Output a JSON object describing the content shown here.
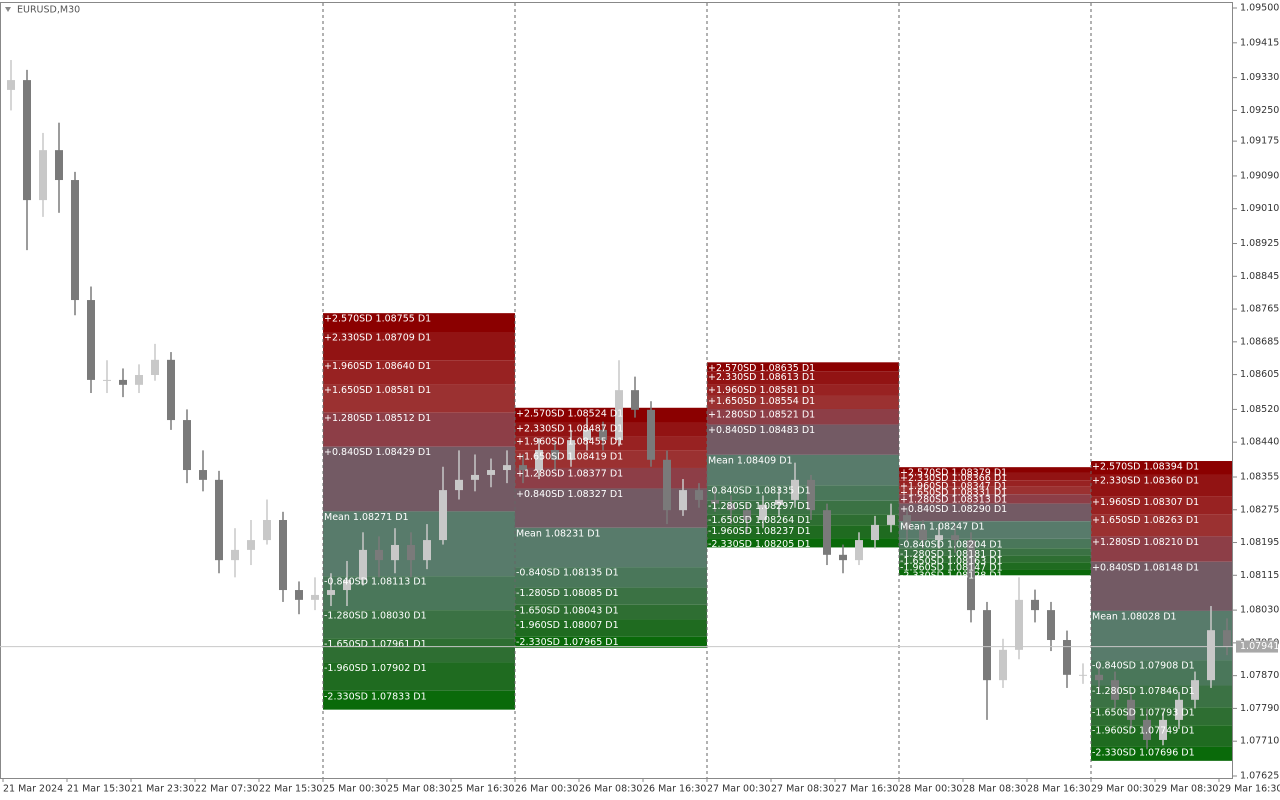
{
  "chart_data": {
    "type": "candlestick",
    "title": "EURUSD,M30",
    "ylim": [
      1.07625,
      1.095
    ],
    "yticks": [
      {
        "value": 1.095,
        "label": "1.09500"
      },
      1.09415,
      {
        "value": 1.0933,
        "label": "1.09330"
      },
      {
        "value": 1.0925,
        "label": "1.09250"
      },
      1.09175,
      {
        "value": 1.0909,
        "label": "1.09090"
      },
      {
        "value": 1.0901,
        "label": "1.09010"
      },
      1.08925,
      1.08845,
      1.08765,
      1.08685,
      1.08605,
      {
        "value": 1.0852,
        "label": "1.08520"
      },
      {
        "value": 1.0844,
        "label": "1.08440"
      },
      1.08355,
      1.08275,
      1.08195,
      1.08115,
      {
        "value": 1.0803,
        "label": "1.08030"
      },
      {
        "value": 1.0795,
        "label": "1.07950"
      },
      {
        "value": 1.0787,
        "label": "1.07870"
      },
      {
        "value": 1.0779,
        "label": "1.07790"
      },
      {
        "value": 1.0771,
        "label": "1.07710"
      },
      1.07625
    ],
    "x_labels": [
      "21 Mar 2024",
      "21 Mar 15:30",
      "21 Mar 23:30",
      "22 Mar 07:30",
      "22 Mar 15:30",
      "25 Mar 00:30",
      "25 Mar 08:30",
      "25 Mar 16:30",
      "26 Mar 00:30",
      "26 Mar 08:30",
      "26 Mar 16:30",
      "27 Mar 00:30",
      "27 Mar 08:30",
      "27 Mar 16:30",
      "28 Mar 00:30",
      "28 Mar 08:30",
      "28 Mar 16:30",
      "29 Mar 00:30",
      "29 Mar 08:30",
      "29 Mar 16:30"
    ],
    "up_color": "#c8c8c8",
    "down_color": "#7a7a7a",
    "ohlc": [
      [
        1.093,
        1.09373,
        1.0925,
        1.09324
      ],
      [
        1.09324,
        1.09349,
        1.08909,
        1.09031
      ],
      [
        1.09031,
        1.09195,
        1.0899,
        1.09153
      ],
      [
        1.09153,
        1.0922,
        1.09,
        1.0908
      ],
      [
        1.0908,
        1.091,
        1.0875,
        1.08787
      ],
      [
        1.08787,
        1.0882,
        1.0856,
        1.08592
      ],
      [
        1.08592,
        1.0864,
        1.0856,
        1.08592
      ],
      [
        1.08592,
        1.0862,
        1.0855,
        1.0858
      ],
      [
        1.0858,
        1.0863,
        1.0856,
        1.08604
      ],
      [
        1.08604,
        1.0868,
        1.0859,
        1.08641
      ],
      [
        1.08641,
        1.0866,
        1.0847,
        1.08494
      ],
      [
        1.08494,
        1.0852,
        1.0834,
        1.08372
      ],
      [
        1.08372,
        1.0842,
        1.0832,
        1.08348
      ],
      [
        1.08348,
        1.0837,
        1.0812,
        1.08152
      ],
      [
        1.08152,
        1.0823,
        1.0811,
        1.08177
      ],
      [
        1.08177,
        1.0825,
        1.0814,
        1.08201
      ],
      [
        1.08201,
        1.083,
        1.0819,
        1.0825
      ],
      [
        1.0825,
        1.0827,
        1.0805,
        1.08079
      ],
      [
        1.08079,
        1.081,
        1.0802,
        1.08055
      ],
      [
        1.08055,
        1.0811,
        1.0803,
        1.08067
      ],
      [
        1.08067,
        1.0812,
        1.0804,
        1.08079
      ],
      [
        1.08079,
        1.0815,
        1.0804,
        1.08104
      ],
      [
        1.08104,
        1.0822,
        1.0809,
        1.08177
      ],
      [
        1.08177,
        1.0821,
        1.0811,
        1.08152
      ],
      [
        1.08152,
        1.0823,
        1.0812,
        1.08189
      ],
      [
        1.08189,
        1.0822,
        1.0811,
        1.08152
      ],
      [
        1.08152,
        1.0824,
        1.0813,
        1.08201
      ],
      [
        1.08201,
        1.0838,
        1.0819,
        1.08323
      ],
      [
        1.08323,
        1.0842,
        1.083,
        1.08348
      ],
      [
        1.08348,
        1.0841,
        1.0832,
        1.0836
      ],
      [
        1.0836,
        1.084,
        1.0833,
        1.08372
      ],
      [
        1.08372,
        1.0842,
        1.0834,
        1.08384
      ],
      [
        1.08384,
        1.0841,
        1.0834,
        1.08372
      ],
      [
        1.08372,
        1.0845,
        1.0835,
        1.08421
      ],
      [
        1.08421,
        1.0844,
        1.0837,
        1.08397
      ],
      [
        1.08397,
        1.0847,
        1.0838,
        1.08445
      ],
      [
        1.08445,
        1.085,
        1.0842,
        1.0847
      ],
      [
        1.0847,
        1.0849,
        1.0842,
        1.08445
      ],
      [
        1.08445,
        1.0864,
        1.0843,
        1.08567
      ],
      [
        1.08567,
        1.086,
        1.085,
        1.08519
      ],
      [
        1.08519,
        1.0854,
        1.0838,
        1.08397
      ],
      [
        1.08397,
        1.0842,
        1.0824,
        1.08274
      ],
      [
        1.08274,
        1.0835,
        1.0826,
        1.08323
      ],
      [
        1.08323,
        1.0834,
        1.0828,
        1.08299
      ],
      [
        1.08299,
        1.0833,
        1.0827,
        1.0829
      ],
      [
        1.0829,
        1.0831,
        1.0824,
        1.08274
      ],
      [
        1.08274,
        1.0829,
        1.0822,
        1.0825
      ],
      [
        1.0825,
        1.0831,
        1.0823,
        1.08287
      ],
      [
        1.08287,
        1.0833,
        1.0826,
        1.08299
      ],
      [
        1.08299,
        1.0839,
        1.0828,
        1.08348
      ],
      [
        1.08348,
        1.0836,
        1.0825,
        1.08274
      ],
      [
        1.08274,
        1.0829,
        1.0814,
        1.08165
      ],
      [
        1.08165,
        1.0819,
        1.0812,
        1.08152
      ],
      [
        1.08152,
        1.0822,
        1.0814,
        1.08201
      ],
      [
        1.08201,
        1.0826,
        1.0818,
        1.08238
      ],
      [
        1.08238,
        1.0829,
        1.0822,
        1.08262
      ],
      [
        1.08262,
        1.0828,
        1.082,
        1.08226
      ],
      [
        1.08226,
        1.0825,
        1.0818,
        1.08201
      ],
      [
        1.08201,
        1.0824,
        1.0818,
        1.08213
      ],
      [
        1.08213,
        1.0824,
        1.0817,
        1.08201
      ],
      [
        1.08201,
        1.0822,
        1.08,
        1.0803
      ],
      [
        1.0803,
        1.0805,
        1.07762,
        1.07859
      ],
      [
        1.07859,
        1.0796,
        1.0784,
        1.07933
      ],
      [
        1.07933,
        1.0811,
        1.0791,
        1.08055
      ],
      [
        1.08055,
        1.0808,
        1.08,
        1.0803
      ],
      [
        1.0803,
        1.0805,
        1.0793,
        1.07957
      ],
      [
        1.07957,
        1.0798,
        1.0784,
        1.07872
      ],
      [
        1.07872,
        1.079,
        1.0785,
        1.07872
      ],
      [
        1.07872,
        1.079,
        1.0783,
        1.07859
      ],
      [
        1.07859,
        1.0788,
        1.0779,
        1.07811
      ],
      [
        1.07811,
        1.0783,
        1.0774,
        1.07762
      ],
      [
        1.07762,
        1.0779,
        1.0769,
        1.07713
      ],
      [
        1.07713,
        1.0778,
        1.077,
        1.07762
      ],
      [
        1.07762,
        1.0783,
        1.0774,
        1.07811
      ],
      [
        1.07811,
        1.0788,
        1.0779,
        1.07859
      ],
      [
        1.07859,
        1.0804,
        1.0784,
        1.07981
      ],
      [
        1.07981,
        1.0801,
        1.0792,
        1.07941
      ]
    ],
    "band_colors": [
      "#8b0000",
      "#921313",
      "#982222",
      "#9b3131",
      "#8d3e47",
      "#735a64",
      "#587b6b",
      "#4a775a",
      "#3b7244",
      "#2e6e32",
      "#1f6b20",
      "#0a6a0a"
    ],
    "sessions": [
      {
        "values": [
          1.08755,
          1.08709,
          1.0864,
          1.08581,
          1.08512,
          1.08429,
          1.08271,
          1.08113,
          1.0803,
          1.07961,
          1.07902,
          1.07833
        ],
        "value_labels": [
          "+2.570SD 1.08755 D1",
          "+2.330SD 1.08709 D1",
          "+1.960SD 1.08640 D1",
          "+1.650SD 1.08581 D1",
          "+1.280SD 1.08512 D1",
          "+0.840SD 1.08429 D1",
          "Mean 1.08271 D1",
          "-0.840SD 1.08113 D1",
          "-1.280SD 1.08030 D1",
          "-1.650SD 1.07961 D1",
          "-1.960SD 1.07902 D1",
          "-2.330SD 1.07833 D1"
        ]
      },
      {
        "values": [
          1.08524,
          1.08487,
          1.08455,
          1.08419,
          1.08377,
          1.08327,
          1.08231,
          1.08135,
          1.08085,
          1.08043,
          1.08007,
          1.07965
        ],
        "value_labels": [
          "+2.570SD 1.08524 D1",
          "+2.330SD 1.08487 D1",
          "+1.960SD 1.08455 D1",
          "+1.650SD 1.08419 D1",
          "+1.280SD 1.08377 D1",
          "+0.840SD 1.08327 D1",
          "Mean 1.08231 D1",
          "-0.840SD 1.08135 D1",
          "-1.280SD 1.08085 D1",
          "-1.650SD 1.08043 D1",
          "-1.960SD 1.08007 D1",
          "-2.330SD 1.07965 D1"
        ]
      },
      {
        "values": [
          1.08635,
          1.08613,
          1.08581,
          1.08554,
          1.08521,
          1.08483,
          1.08409,
          1.08335,
          1.08297,
          1.08264,
          1.08237,
          1.08205
        ],
        "value_labels": [
          "+2.570SD 1.08635 D1",
          "+2.330SD 1.08613 D1",
          "+1.960SD 1.08581 D1",
          "+1.650SD 1.08554 D1",
          "+1.280SD 1.08521 D1",
          "+0.840SD 1.08483 D1",
          "Mean 1.08409 D1",
          "-0.840SD 1.08335 D1",
          "-1.280SD 1.08297 D1",
          "-1.650SD 1.08264 D1",
          "-1.960SD 1.08237 D1",
          "-2.330SD 1.08205 D1"
        ]
      },
      {
        "values": [
          1.08379,
          1.08366,
          1.08347,
          1.08331,
          1.08313,
          1.0829,
          1.08247,
          1.08204,
          1.08181,
          1.08163,
          1.08147,
          1.08128
        ],
        "value_labels": [
          "+2.570SD 1.08379 D1",
          "+2.330SD 1.08366 D1",
          "+1.960SD 1.08347 D1",
          "+1.650SD 1.08331 D1",
          "+1.280SD 1.08313 D1",
          "+0.840SD 1.08290 D1",
          "Mean 1.08247 D1",
          "-0.840SD 1.08204 D1",
          "-1.280SD 1.08181 D1",
          "-1.650SD 1.08163 D1",
          "-1.960SD 1.08147 D1",
          "-2.330SD 1.08128 D1"
        ]
      },
      {
        "values": [
          1.08394,
          1.0836,
          1.08307,
          1.08263,
          1.0821,
          1.08148,
          1.08028,
          1.07908,
          1.07846,
          1.07793,
          1.07749,
          1.07696
        ],
        "value_labels": [
          "+2.570SD 1.08394 D1",
          "+2.330SD 1.08360 D1",
          "+1.960SD 1.08307 D1",
          "+1.650SD 1.08263 D1",
          "+1.280SD 1.08210 D1",
          "+0.840SD 1.08148 D1",
          "Mean 1.08028 D1",
          "-0.840SD 1.07908 D1",
          "-1.280SD 1.07846 D1",
          "-1.650SD 1.07793 D1",
          "-1.960SD 1.07749 D1",
          "-2.330SD 1.07696 D1"
        ]
      }
    ],
    "last_price": 1.07941,
    "last_price_color": "#a8a8a8"
  }
}
